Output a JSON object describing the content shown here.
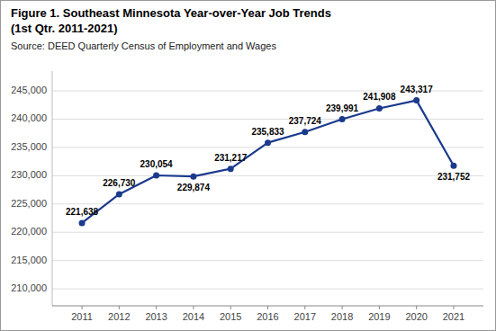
{
  "chart_data": {
    "type": "line",
    "title": "Figure 1. Southeast Minnesota Year-over-Year Job Trends",
    "subtitle": "(1st Qtr. 2011-2021)",
    "annotations": [
      "Source: DEED Quarterly Census of Employment and Wages"
    ],
    "x": [
      2011,
      2012,
      2013,
      2014,
      2015,
      2016,
      2017,
      2018,
      2019,
      2020,
      2021
    ],
    "values": [
      221638,
      226730,
      230054,
      229874,
      231217,
      235833,
      237724,
      239991,
      241908,
      243317,
      231752
    ],
    "value_labels": [
      "221,638",
      "226,730",
      "230,054",
      "229,874",
      "231,217",
      "235,833",
      "237,724",
      "239,991",
      "241,908",
      "243,317",
      "231,752"
    ],
    "color": "#1B3A8C",
    "marker": "circle",
    "xlim": [
      2010.2,
      2021.8
    ],
    "xticks": [
      2011,
      2012,
      2013,
      2014,
      2015,
      2016,
      2017,
      2018,
      2019,
      2020,
      2021
    ],
    "ylim": [
      207000,
      248500
    ],
    "yticks": [
      {
        "value": 210000,
        "label": "210,000"
      },
      {
        "value": 215000,
        "label": "215,000"
      },
      {
        "value": 220000,
        "label": "220,000"
      },
      {
        "value": 225000,
        "label": "225,000"
      },
      {
        "value": 230000,
        "label": "230,000"
      },
      {
        "value": 235000,
        "label": "235,000"
      },
      {
        "value": 240000,
        "label": "240,000"
      },
      {
        "value": 245000,
        "label": "245,000"
      }
    ],
    "grid": true,
    "data_labels": true
  }
}
